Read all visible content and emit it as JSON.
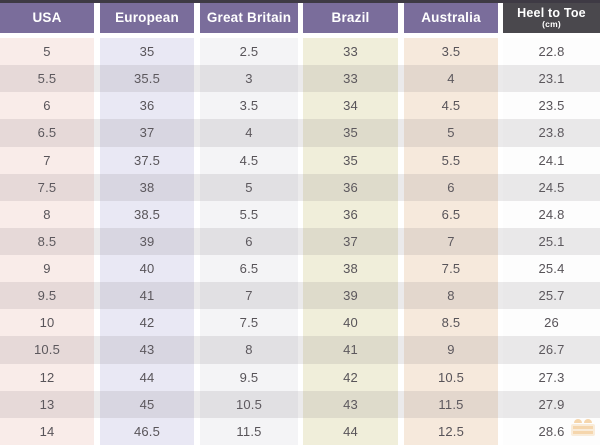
{
  "chart_data": {
    "type": "table",
    "columns": [
      {
        "label": "USA"
      },
      {
        "label": "European"
      },
      {
        "label": "Great Britain"
      },
      {
        "label": "Brazil"
      },
      {
        "label": "Australia"
      },
      {
        "label": "Heel to Toe",
        "sublabel": "(cm)"
      }
    ],
    "rows": [
      [
        "5",
        "35",
        "2.5",
        "33",
        "3.5",
        "22.8"
      ],
      [
        "5.5",
        "35.5",
        "3",
        "33",
        "4",
        "23.1"
      ],
      [
        "6",
        "36",
        "3.5",
        "34",
        "4.5",
        "23.5"
      ],
      [
        "6.5",
        "37",
        "4",
        "35",
        "5",
        "23.8"
      ],
      [
        "7",
        "37.5",
        "4.5",
        "35",
        "5.5",
        "24.1"
      ],
      [
        "7.5",
        "38",
        "5",
        "36",
        "6",
        "24.5"
      ],
      [
        "8",
        "38.5",
        "5.5",
        "36",
        "6.5",
        "24.8"
      ],
      [
        "8.5",
        "39",
        "6",
        "37",
        "7",
        "25.1"
      ],
      [
        "9",
        "40",
        "6.5",
        "38",
        "7.5",
        "25.4"
      ],
      [
        "9.5",
        "41",
        "7",
        "39",
        "8",
        "25.7"
      ],
      [
        "10",
        "42",
        "7.5",
        "40",
        "8.5",
        "26"
      ],
      [
        "10.5",
        "43",
        "8",
        "41",
        "9",
        "26.7"
      ],
      [
        "12",
        "44",
        "9.5",
        "42",
        "10.5",
        "27.3"
      ],
      [
        "13",
        "45",
        "10.5",
        "43",
        "11.5",
        "27.9"
      ],
      [
        "14",
        "46.5",
        "11.5",
        "44",
        "12.5",
        "28.6"
      ]
    ]
  },
  "colors": {
    "header_bg": [
      "#7a6d9b",
      "#7a6d9b",
      "#7a6d9b",
      "#7a6d9b",
      "#7a6d9b",
      "#4a484d"
    ],
    "column_bg": [
      "#f9ece9",
      "#e9e8f4",
      "#f4f4f6",
      "#f0eeda",
      "#f6e9dc",
      "#fdfdfd"
    ],
    "header_text": "#ffffff",
    "cell_text": "#585459",
    "row_stripe": "rgba(120,112,120,0.15)",
    "top_strip": "#3e3a44",
    "watermark_accent": "#eda94e",
    "watermark_light": "#f6d9b0"
  }
}
